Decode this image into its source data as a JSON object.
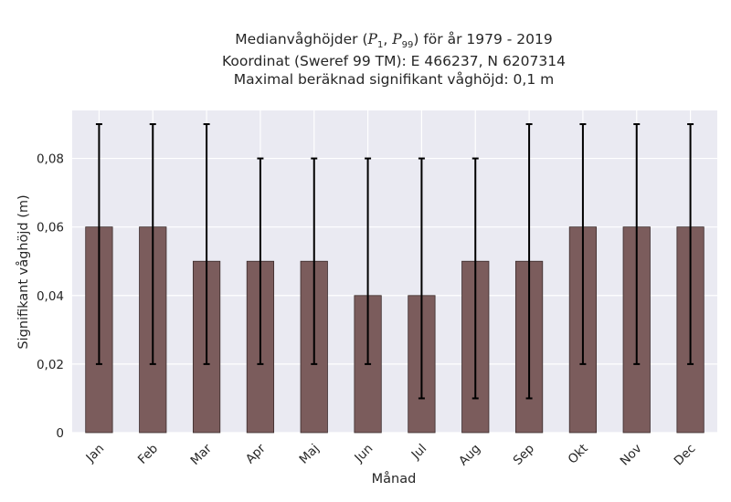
{
  "title": {
    "line1_prefix": "Medianvåghöjder (",
    "p1": "P",
    "p1_sub": "1",
    "sep": ", ",
    "p2": "P",
    "p2_sub": "99",
    "line1_suffix": ") för år 1979 - 2019",
    "line2": "Koordinat (Sweref 99 TM): E 466237, N 6207314",
    "line3": "Maximal beräknad signifikant våghöjd: 0,1 m"
  },
  "chart_data": {
    "type": "bar",
    "categories": [
      "Jan",
      "Feb",
      "Mar",
      "Apr",
      "Maj",
      "Jun",
      "Jul",
      "Aug",
      "Sep",
      "Okt",
      "Nov",
      "Dec"
    ],
    "values": [
      0.06,
      0.06,
      0.05,
      0.05,
      0.05,
      0.04,
      0.04,
      0.05,
      0.05,
      0.06,
      0.06,
      0.06
    ],
    "error_low": [
      0.02,
      0.02,
      0.02,
      0.02,
      0.02,
      0.02,
      0.01,
      0.01,
      0.01,
      0.02,
      0.02,
      0.02
    ],
    "error_high": [
      0.09,
      0.09,
      0.09,
      0.08,
      0.08,
      0.08,
      0.08,
      0.08,
      0.09,
      0.09,
      0.09,
      0.09
    ],
    "xlabel": "Månad",
    "ylabel": "Signifikant våghöjd (m)",
    "ylim": [
      0,
      0.094
    ],
    "yticks": [
      0,
      0.02,
      0.04,
      0.06,
      0.08
    ],
    "ytick_labels": [
      "0",
      "0,02",
      "0,04",
      "0,06",
      "0,08"
    ],
    "grid": true,
    "colors": {
      "bar": "#7b5c5c",
      "bar_edge": "#3a2a2a",
      "error": "#000000",
      "background": "#eaeaf2",
      "grid": "#ffffff"
    }
  }
}
